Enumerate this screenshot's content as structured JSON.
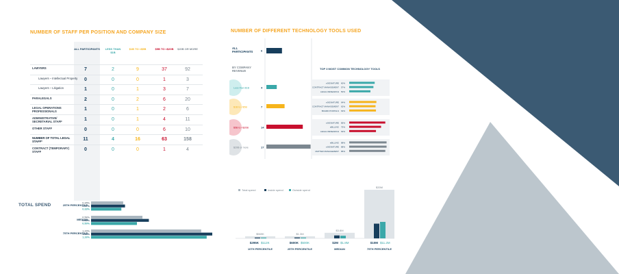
{
  "colors": {
    "orange": "#f5a623",
    "navy": "#173e5c",
    "teal": "#3aa8a9",
    "yellow": "#f6b41b",
    "crimson": "#c8102e",
    "gray": "#7c8790",
    "slate": "#3f5a73",
    "lightgray": "#a9b6bf"
  },
  "table": {
    "title": "NUMBER OF STAFF PER POSITION AND COMPANY SIZE",
    "columns": [
      "ALL PARTICIPANTS",
      "LESS THAN $1B",
      "$1B TO <$5B",
      "$5B TO <$20B",
      "$20B OR MORE"
    ],
    "rows": [
      {
        "label": "LAWYERS",
        "values": [
          "7",
          "2",
          "9",
          "37",
          "92"
        ],
        "sub": false
      },
      {
        "label": "Lawyers – Intellectual Property",
        "values": [
          "0",
          "0",
          "0",
          "1",
          "3"
        ],
        "sub": true
      },
      {
        "label": "Lawyers – Litigation",
        "values": [
          "1",
          "0",
          "1",
          "3",
          "7"
        ],
        "sub": true
      },
      {
        "label": "PARALEGALS",
        "values": [
          "2",
          "0",
          "2",
          "6",
          "20"
        ],
        "sub": false
      },
      {
        "label": "LEGAL OPERATIONS PROFESSIONALS",
        "values": [
          "1",
          "0",
          "1",
          "2",
          "6"
        ],
        "sub": false
      },
      {
        "label": "ADMINISTRATIVE/ SECRETARIAL STAFF",
        "values": [
          "1",
          "0",
          "1",
          "4",
          "11"
        ],
        "sub": false
      },
      {
        "label": "OTHER STAFF",
        "values": [
          "0",
          "0",
          "0",
          "6",
          "10"
        ],
        "sub": false
      },
      {
        "label": "NUMBER OF TOTAL LEGAL STAFF*",
        "values": [
          "11",
          "4",
          "16",
          "63",
          "158"
        ],
        "sub": false
      },
      {
        "label": "CONTRACT (TEMPORARY) STAFF",
        "values": [
          "0",
          "0",
          "0",
          "1",
          "4"
        ],
        "sub": false
      }
    ]
  },
  "chart_data": [
    {
      "type": "bar",
      "title": "NUMBER OF DIFFERENT TECHNOLOGY TOOLS USED",
      "categories": [
        "ALL PARTICIPANTS",
        "Less than $1B",
        "$1B to <$5B",
        "$5B to <$20B",
        "$20B or more"
      ],
      "values": [
        6,
        4,
        7,
        14,
        17
      ],
      "group_label": "BY COMPANY REVENUE",
      "subtitle": "TOP 3 MOST COMMON TECHNOLOGY TOOLS",
      "top_tools": [
        [
          {
            "name": "eSIGNATURE",
            "pct": "60%",
            "v": 60
          },
          {
            "name": "CONTRACT MANAGEMENT",
            "pct": "57%",
            "v": 57
          },
          {
            "name": "LEGAL RESEARCH",
            "pct": "50%",
            "v": 50
          }
        ],
        [
          {
            "name": "eSIGNATURE",
            "pct": "64%",
            "v": 64
          },
          {
            "name": "CONTRACT MANAGEMENT",
            "pct": "62%",
            "v": 62
          },
          {
            "name": "BOARD PORTALS",
            "pct": "63%",
            "v": 63
          }
        ],
        [
          {
            "name": "eSIGNATURE",
            "pct": "85%",
            "v": 85
          },
          {
            "name": "eBILLING",
            "pct": "75%",
            "v": 75
          },
          {
            "name": "LEGAL RESEARCH",
            "pct": "63%",
            "v": 63
          }
        ],
        [
          {
            "name": "eBILLING",
            "pct": "88%",
            "v": 88
          },
          {
            "name": "eSIGNATURE",
            "pct": "88%",
            "v": 88
          },
          {
            "name": "MATTER MANAGEMENT",
            "pct": "85%",
            "v": 85
          }
        ]
      ]
    },
    {
      "type": "bar",
      "title": "TOTAL SPEND",
      "categories": [
        "25TH PERCENTILE",
        "MEDIAN",
        "75TH PERCENTILE"
      ],
      "series": [
        {
          "labels": [
            "0.35%",
            "0.56%",
            "1.20%"
          ],
          "values": [
            0.35,
            0.56,
            1.2
          ]
        },
        {
          "labels": [
            "0.37%",
            "0.63%",
            "1.43%"
          ],
          "values": [
            0.37,
            0.63,
            1.43
          ]
        },
        {
          "labels": [
            "0.33%",
            "0.50%",
            "1.26%"
          ],
          "values": [
            0.33,
            0.5,
            1.26
          ]
        }
      ]
    },
    {
      "type": "bar",
      "categories": [
        "10TH PERCENTILE",
        "25TH PERCENTILE",
        "MEDIAN",
        "75TH PERCENTILE"
      ],
      "legend": [
        "Total spend",
        "Inside spend",
        "Outside spend"
      ],
      "series": [
        {
          "name": "Total spend",
          "labels": [
            "$569K",
            "$1.3M",
            "$3.8M",
            "$33M"
          ],
          "values": [
            0.569,
            1.3,
            3.8,
            33
          ]
        },
        {
          "name": "Inside spend",
          "labels": [
            "$295K",
            "$600K",
            "$2M",
            "$10M"
          ],
          "values": [
            0.295,
            0.6,
            2,
            10
          ]
        },
        {
          "name": "Outside spend",
          "labels": [
            "$112K",
            "$500K",
            "$1.8M",
            "$11.2M"
          ],
          "values": [
            0.112,
            0.5,
            1.8,
            11.2
          ]
        }
      ]
    }
  ]
}
